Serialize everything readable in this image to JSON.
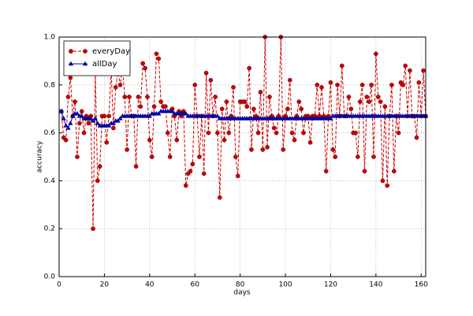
{
  "chart_data": {
    "type": "line",
    "xlabel": "days",
    "ylabel": "accuracy",
    "x": [
      1,
      2,
      3,
      4,
      5,
      6,
      7,
      8,
      9,
      10,
      11,
      12,
      13,
      14,
      15,
      16,
      17,
      18,
      19,
      20,
      21,
      22,
      23,
      24,
      25,
      26,
      27,
      28,
      29,
      30,
      31,
      32,
      33,
      34,
      35,
      36,
      37,
      38,
      39,
      40,
      41,
      42,
      43,
      44,
      45,
      46,
      47,
      48,
      49,
      50,
      51,
      52,
      53,
      54,
      55,
      56,
      57,
      58,
      59,
      60,
      61,
      62,
      63,
      64,
      65,
      66,
      67,
      68,
      69,
      70,
      71,
      72,
      73,
      74,
      75,
      76,
      77,
      78,
      79,
      80,
      81,
      82,
      83,
      84,
      85,
      86,
      87,
      88,
      89,
      90,
      91,
      92,
      93,
      94,
      95,
      96,
      97,
      98,
      99,
      100,
      101,
      102,
      103,
      104,
      105,
      106,
      107,
      108,
      109,
      110,
      111,
      112,
      113,
      114,
      115,
      116,
      117,
      118,
      119,
      120,
      121,
      122,
      123,
      124,
      125,
      126,
      127,
      128,
      129,
      130,
      131,
      132,
      133,
      134,
      135,
      136,
      137,
      138,
      139,
      140,
      141,
      142,
      143,
      144,
      145,
      146,
      147,
      148,
      149,
      150,
      151,
      152,
      153,
      154,
      155,
      156,
      157,
      158,
      159,
      160,
      161,
      162
    ],
    "series": [
      {
        "name": "everyDay",
        "color": "#cc0000",
        "marker": "circle",
        "linestyle": "dashed",
        "values": [
          0.69,
          0.58,
          0.57,
          0.75,
          0.83,
          0.67,
          0.73,
          0.5,
          0.64,
          0.69,
          0.6,
          0.67,
          0.64,
          0.67,
          0.2,
          0.86,
          0.4,
          0.46,
          0.67,
          0.67,
          0.56,
          0.67,
          0.87,
          0.62,
          0.79,
          0.86,
          0.8,
          0.87,
          0.75,
          0.53,
          0.75,
          0.67,
          0.67,
          0.46,
          0.75,
          0.71,
          0.89,
          0.87,
          0.75,
          0.57,
          0.5,
          0.71,
          0.93,
          0.91,
          0.73,
          0.71,
          0.71,
          0.6,
          0.5,
          0.7,
          0.67,
          0.57,
          0.69,
          0.67,
          0.69,
          0.38,
          0.43,
          0.44,
          0.47,
          0.8,
          0.67,
          0.5,
          0.67,
          0.43,
          0.85,
          0.6,
          0.82,
          0.67,
          0.75,
          0.6,
          0.33,
          0.7,
          0.57,
          0.73,
          0.6,
          0.67,
          0.79,
          0.5,
          0.42,
          0.73,
          0.73,
          0.73,
          0.71,
          0.87,
          0.53,
          0.7,
          0.67,
          0.6,
          0.77,
          0.53,
          1.0,
          0.54,
          0.75,
          0.67,
          0.62,
          0.6,
          0.67,
          1.0,
          0.53,
          0.67,
          0.7,
          0.82,
          0.6,
          0.57,
          0.67,
          0.73,
          0.7,
          0.6,
          0.67,
          0.67,
          0.56,
          0.67,
          0.67,
          0.8,
          0.67,
          0.79,
          0.67,
          0.44,
          0.67,
          0.81,
          0.53,
          0.5,
          0.8,
          0.67,
          0.88,
          0.67,
          0.67,
          0.75,
          0.7,
          0.6,
          0.6,
          0.5,
          0.73,
          0.8,
          0.44,
          0.75,
          0.73,
          0.8,
          0.5,
          0.93,
          0.75,
          0.73,
          0.4,
          0.71,
          0.38,
          0.67,
          0.8,
          0.44,
          0.67,
          0.6,
          0.81,
          0.8,
          0.88,
          0.67,
          0.86,
          0.67,
          0.67,
          0.58,
          0.81,
          0.67,
          0.86,
          0.67
        ]
      },
      {
        "name": "allDay",
        "color": "#0000cc",
        "marker": "triangle",
        "linestyle": "solid",
        "values": [
          0.69,
          0.66,
          0.63,
          0.62,
          0.64,
          0.67,
          0.68,
          0.68,
          0.67,
          0.67,
          0.66,
          0.66,
          0.66,
          0.66,
          0.65,
          0.66,
          0.64,
          0.63,
          0.63,
          0.63,
          0.63,
          0.63,
          0.64,
          0.64,
          0.65,
          0.65,
          0.66,
          0.67,
          0.67,
          0.67,
          0.67,
          0.67,
          0.67,
          0.67,
          0.67,
          0.67,
          0.67,
          0.67,
          0.67,
          0.67,
          0.68,
          0.68,
          0.68,
          0.68,
          0.69,
          0.69,
          0.69,
          0.69,
          0.69,
          0.69,
          0.68,
          0.68,
          0.68,
          0.68,
          0.68,
          0.68,
          0.67,
          0.67,
          0.67,
          0.67,
          0.67,
          0.67,
          0.67,
          0.67,
          0.67,
          0.67,
          0.67,
          0.67,
          0.67,
          0.67,
          0.66,
          0.66,
          0.66,
          0.66,
          0.66,
          0.66,
          0.66,
          0.66,
          0.66,
          0.66,
          0.66,
          0.66,
          0.66,
          0.66,
          0.66,
          0.66,
          0.66,
          0.66,
          0.66,
          0.66,
          0.66,
          0.66,
          0.66,
          0.66,
          0.66,
          0.66,
          0.66,
          0.66,
          0.66,
          0.66,
          0.66,
          0.66,
          0.66,
          0.66,
          0.66,
          0.66,
          0.66,
          0.66,
          0.66,
          0.66,
          0.66,
          0.66,
          0.66,
          0.66,
          0.66,
          0.66,
          0.66,
          0.66,
          0.66,
          0.66,
          0.67,
          0.67,
          0.67,
          0.67,
          0.67,
          0.67,
          0.67,
          0.67,
          0.67,
          0.67,
          0.67,
          0.67,
          0.67,
          0.67,
          0.67,
          0.67,
          0.67,
          0.67,
          0.67,
          0.67,
          0.67,
          0.67,
          0.67,
          0.67,
          0.67,
          0.67,
          0.67,
          0.67,
          0.67,
          0.67,
          0.67,
          0.67,
          0.67,
          0.67,
          0.67,
          0.67,
          0.67,
          0.67,
          0.67,
          0.67,
          0.67,
          0.67
        ]
      }
    ],
    "xlim": [
      0,
      162
    ],
    "xticks": [
      0,
      20,
      40,
      60,
      80,
      100,
      120,
      140,
      160
    ],
    "ylim": [
      0,
      1
    ],
    "yticks": [
      {
        "value": 0,
        "label": "0.0"
      },
      0.2,
      0.4,
      0.6,
      0.8,
      {
        "value": 1,
        "label": "1.0"
      }
    ],
    "grid": true,
    "legend": "upper left"
  }
}
